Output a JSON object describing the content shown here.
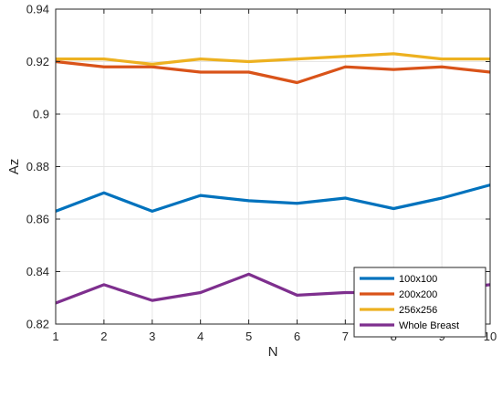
{
  "chart_data": {
    "type": "line",
    "title": "",
    "xlabel": "N",
    "ylabel": "Az",
    "x": [
      1,
      2,
      3,
      4,
      5,
      6,
      7,
      8,
      9,
      10
    ],
    "xlim": [
      1,
      10
    ],
    "ylim": [
      0.82,
      0.94
    ],
    "xticks": [
      "1",
      "2",
      "3",
      "4",
      "5",
      "6",
      "7",
      "8",
      "9",
      "10"
    ],
    "yticks": [
      "0.82",
      "0.84",
      "0.86",
      "0.88",
      "0.9",
      "0.92",
      "0.94"
    ],
    "grid": true,
    "legend_position": "bottom-right",
    "series": [
      {
        "name": "100x100",
        "color": "#0072BD",
        "values": [
          0.863,
          0.87,
          0.863,
          0.869,
          0.867,
          0.866,
          0.868,
          0.864,
          0.868,
          0.873
        ]
      },
      {
        "name": "200x200",
        "color": "#D95319",
        "values": [
          0.92,
          0.918,
          0.918,
          0.916,
          0.916,
          0.912,
          0.918,
          0.917,
          0.918,
          0.916
        ]
      },
      {
        "name": "256x256",
        "color": "#EDB120",
        "values": [
          0.921,
          0.921,
          0.919,
          0.921,
          0.92,
          0.921,
          0.922,
          0.923,
          0.921,
          0.921
        ]
      },
      {
        "name": "Whole Breast",
        "color": "#7E2F8E",
        "values": [
          0.828,
          0.835,
          0.829,
          0.832,
          0.839,
          0.831,
          0.832,
          0.832,
          0.833,
          0.835
        ]
      }
    ]
  }
}
